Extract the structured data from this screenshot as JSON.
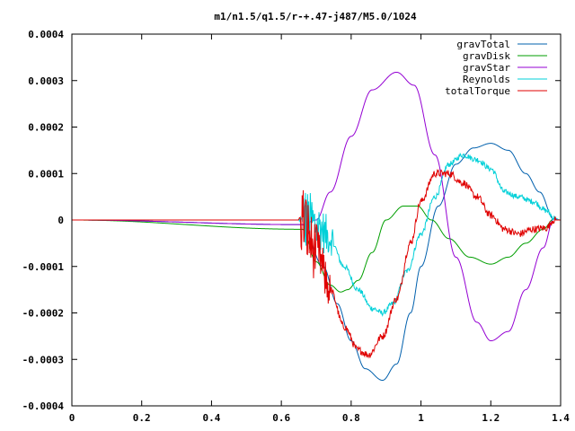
{
  "chart_data": {
    "type": "line",
    "title": "m1/n1.5/q1.5/r-+.47-j487/M5.0/1024",
    "xlabel": "",
    "ylabel": "",
    "xlim": [
      0,
      1.4
    ],
    "ylim": [
      -0.0004,
      0.0004
    ],
    "grid": false,
    "legend_position": "top-right",
    "x_ticks": [
      0,
      0.2,
      0.4,
      0.6,
      0.8,
      1,
      1.2,
      1.4
    ],
    "x_tick_labels": [
      "0",
      "0.2",
      "0.4",
      "0.6",
      "0.8",
      "1",
      "1.2",
      "1.4"
    ],
    "y_ticks": [
      -0.0004,
      -0.0003,
      -0.0002,
      -0.0001,
      0,
      0.0001,
      0.0002,
      0.0003,
      0.0004
    ],
    "y_tick_labels": [
      "-0.0004",
      "-0.0003",
      "-0.0002",
      "-0.0001",
      "0",
      "0.0001",
      "0.0002",
      "0.0003",
      "0.0004"
    ],
    "series": [
      {
        "name": "gravTotal",
        "color": "#0060ad",
        "noise": 0,
        "x": [
          0.0,
          0.66,
          0.72,
          0.76,
          0.8,
          0.84,
          0.89,
          0.93,
          0.97,
          1.0,
          1.05,
          1.1,
          1.15,
          1.2,
          1.25,
          1.3,
          1.34,
          1.38,
          1.4
        ],
        "y": [
          0.0,
          -1e-05,
          -0.0001,
          -0.00018,
          -0.00026,
          -0.00032,
          -0.000345,
          -0.00031,
          -0.0002,
          -0.0001,
          3e-05,
          0.00012,
          0.000155,
          0.000165,
          0.00015,
          0.0001,
          6e-05,
          2e-06,
          0.0
        ]
      },
      {
        "name": "gravDisk",
        "color": "#009e00",
        "noise": 0,
        "x": [
          0.0,
          0.66,
          0.7,
          0.74,
          0.77,
          0.79,
          0.82,
          0.86,
          0.9,
          0.95,
          0.99,
          1.03,
          1.08,
          1.14,
          1.2,
          1.25,
          1.3,
          1.35,
          1.38,
          1.4
        ],
        "y": [
          0.0,
          -2e-05,
          -9e-05,
          -0.00014,
          -0.000155,
          -0.00015,
          -0.00013,
          -7e-05,
          0.0,
          3e-05,
          3e-05,
          0.0,
          -4e-05,
          -8e-05,
          -9.5e-05,
          -8e-05,
          -5e-05,
          -2e-05,
          2e-06,
          0.0
        ]
      },
      {
        "name": "gravStar",
        "color": "#9400d3",
        "noise": 0,
        "x": [
          0.0,
          0.66,
          0.7,
          0.74,
          0.8,
          0.86,
          0.93,
          0.98,
          1.04,
          1.1,
          1.16,
          1.2,
          1.25,
          1.3,
          1.35,
          1.38,
          1.4
        ],
        "y": [
          0.0,
          -1e-05,
          0.0,
          6e-05,
          0.00018,
          0.00028,
          0.000318,
          0.00029,
          0.00014,
          -8e-05,
          -0.00022,
          -0.00026,
          -0.00024,
          -0.00015,
          -6e-05,
          2e-06,
          0.0
        ]
      },
      {
        "name": "Reynolds",
        "color": "#00d0d8",
        "noise": 6e-06,
        "spike_range": [
          0.66,
          0.75
        ],
        "spike_amp": 8e-05,
        "x": [
          0.0,
          0.66,
          0.7,
          0.74,
          0.78,
          0.82,
          0.86,
          0.89,
          0.92,
          0.96,
          1.0,
          1.04,
          1.08,
          1.12,
          1.16,
          1.2,
          1.24,
          1.28,
          1.32,
          1.36,
          1.38,
          1.4
        ],
        "y": [
          0.0,
          0.0,
          -1e-05,
          -4e-05,
          -0.0001,
          -0.00015,
          -0.00019,
          -0.0002,
          -0.00018,
          -0.00011,
          -3e-05,
          5e-05,
          0.00012,
          0.00014,
          0.00013,
          0.00011,
          6e-05,
          5e-05,
          4e-05,
          2e-05,
          5e-06,
          0.0
        ]
      },
      {
        "name": "totalTorque",
        "color": "#e00000",
        "noise": 8e-06,
        "spike_range": [
          0.655,
          0.74
        ],
        "spike_amp": 9e-05,
        "x": [
          0.0,
          0.66,
          0.7,
          0.74,
          0.78,
          0.82,
          0.85,
          0.89,
          0.93,
          0.97,
          1.0,
          1.04,
          1.08,
          1.12,
          1.16,
          1.2,
          1.24,
          1.28,
          1.32,
          1.36,
          1.38,
          1.4
        ],
        "y": [
          0.0,
          0.0,
          -7e-05,
          -0.00015,
          -0.00023,
          -0.00028,
          -0.00029,
          -0.00025,
          -0.00017,
          -5e-05,
          4e-05,
          0.0001,
          0.0001,
          8e-05,
          5e-05,
          1e-05,
          -2e-05,
          -3e-05,
          -2e-05,
          -1.7e-05,
          0.0,
          0.0
        ]
      }
    ]
  }
}
